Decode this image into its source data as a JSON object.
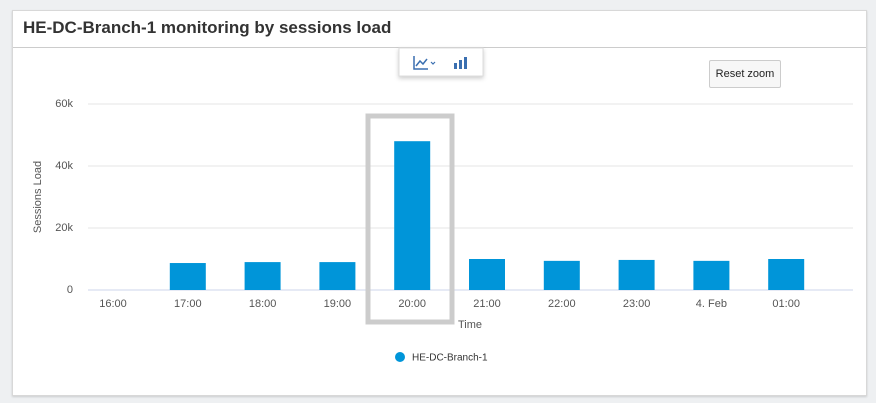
{
  "chart_data": {
    "type": "bar",
    "title": "HE-DC-Branch-1 monitoring by sessions load",
    "categories": [
      "16:00",
      "17:00",
      "18:00",
      "19:00",
      "20:00",
      "21:00",
      "22:00",
      "23:00",
      "4. Feb",
      "01:00"
    ],
    "series": [
      {
        "name": "HE-DC-Branch-1",
        "color": "#0095d9",
        "values": [
          null,
          8700,
          9000,
          9000,
          48000,
          10000,
          9400,
          9700,
          9400,
          10000
        ]
      }
    ],
    "ylim": [
      0,
      60000
    ],
    "yticks": [
      0,
      {
        "value": 20000,
        "label": "20k"
      },
      {
        "value": 40000,
        "label": "40k"
      },
      {
        "value": 60000,
        "label": "60k"
      }
    ],
    "y_label": "Sessions Load",
    "x_label": "Time",
    "grid": true
  },
  "ui": {
    "reset_zoom": "Reset zoom"
  }
}
